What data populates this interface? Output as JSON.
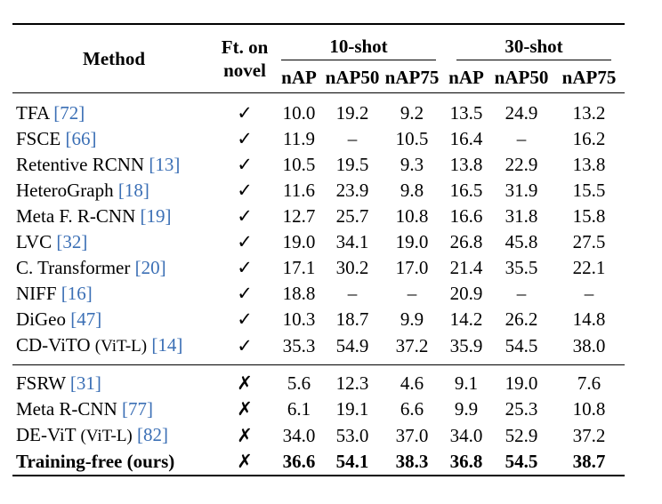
{
  "header": {
    "method": "Method",
    "ft_line1": "Ft. on",
    "ft_line2": "novel",
    "group1": "10-shot",
    "group2": "30-shot",
    "sub": [
      "nAP",
      "nAP50",
      "nAP75",
      "nAP",
      "nAP50",
      "nAP75"
    ]
  },
  "section1": [
    {
      "name": "TFA",
      "cite": "[72]",
      "suffix": "",
      "ft": "✓",
      "vals": [
        "10.0",
        "19.2",
        "9.2",
        "13.5",
        "24.9",
        "13.2"
      ]
    },
    {
      "name": "FSCE",
      "cite": "[66]",
      "suffix": "",
      "ft": "✓",
      "vals": [
        "11.9",
        "–",
        "10.5",
        "16.4",
        "–",
        "16.2"
      ]
    },
    {
      "name": "Retentive RCNN",
      "cite": "[13]",
      "suffix": "",
      "ft": "✓",
      "vals": [
        "10.5",
        "19.5",
        "9.3",
        "13.8",
        "22.9",
        "13.8"
      ]
    },
    {
      "name": "HeteroGraph",
      "cite": "[18]",
      "suffix": "",
      "ft": "✓",
      "vals": [
        "11.6",
        "23.9",
        "9.8",
        "16.5",
        "31.9",
        "15.5"
      ]
    },
    {
      "name": "Meta F. R-CNN",
      "cite": "[19]",
      "suffix": "",
      "ft": "✓",
      "vals": [
        "12.7",
        "25.7",
        "10.8",
        "16.6",
        "31.8",
        "15.8"
      ]
    },
    {
      "name": "LVC",
      "cite": "[32]",
      "suffix": "",
      "ft": "✓",
      "vals": [
        "19.0",
        "34.1",
        "19.0",
        "26.8",
        "45.8",
        "27.5"
      ]
    },
    {
      "name": "C. Transformer",
      "cite": "[20]",
      "suffix": "",
      "ft": "✓",
      "vals": [
        "17.1",
        "30.2",
        "17.0",
        "21.4",
        "35.5",
        "22.1"
      ]
    },
    {
      "name": "NIFF",
      "cite": "[16]",
      "suffix": "",
      "ft": "✓",
      "vals": [
        "18.8",
        "–",
        "–",
        "20.9",
        "–",
        "–"
      ]
    },
    {
      "name": "DiGeo",
      "cite": "[47]",
      "suffix": "",
      "ft": "✓",
      "vals": [
        "10.3",
        "18.7",
        "9.9",
        "14.2",
        "26.2",
        "14.8"
      ]
    },
    {
      "name": "CD-ViTO",
      "cite": "[14]",
      "suffix": "(ViT-L)",
      "ft": "✓",
      "vals": [
        "35.3",
        "54.9",
        "37.2",
        "35.9",
        "54.5",
        "38.0"
      ]
    }
  ],
  "section2": [
    {
      "name": "FSRW",
      "cite": "[31]",
      "suffix": "",
      "ft": "✗",
      "vals": [
        "5.6",
        "12.3",
        "4.6",
        "9.1",
        "19.0",
        "7.6"
      ]
    },
    {
      "name": "Meta R-CNN",
      "cite": "[77]",
      "suffix": "",
      "ft": "✗",
      "vals": [
        "6.1",
        "19.1",
        "6.6",
        "9.9",
        "25.3",
        "10.8"
      ]
    },
    {
      "name": "DE-ViT",
      "cite": "[82]",
      "suffix": "(ViT-L)",
      "ft": "✗",
      "vals": [
        "34.0",
        "53.0",
        "37.0",
        "34.0",
        "52.9",
        "37.2"
      ]
    }
  ],
  "ours": {
    "name": "Training-free (ours)",
    "ft": "✗",
    "vals": [
      "36.6",
      "54.1",
      "38.3",
      "36.8",
      "54.5",
      "38.7"
    ]
  },
  "colors": {
    "citation": "#3b6fb5",
    "rule": "#000000"
  }
}
